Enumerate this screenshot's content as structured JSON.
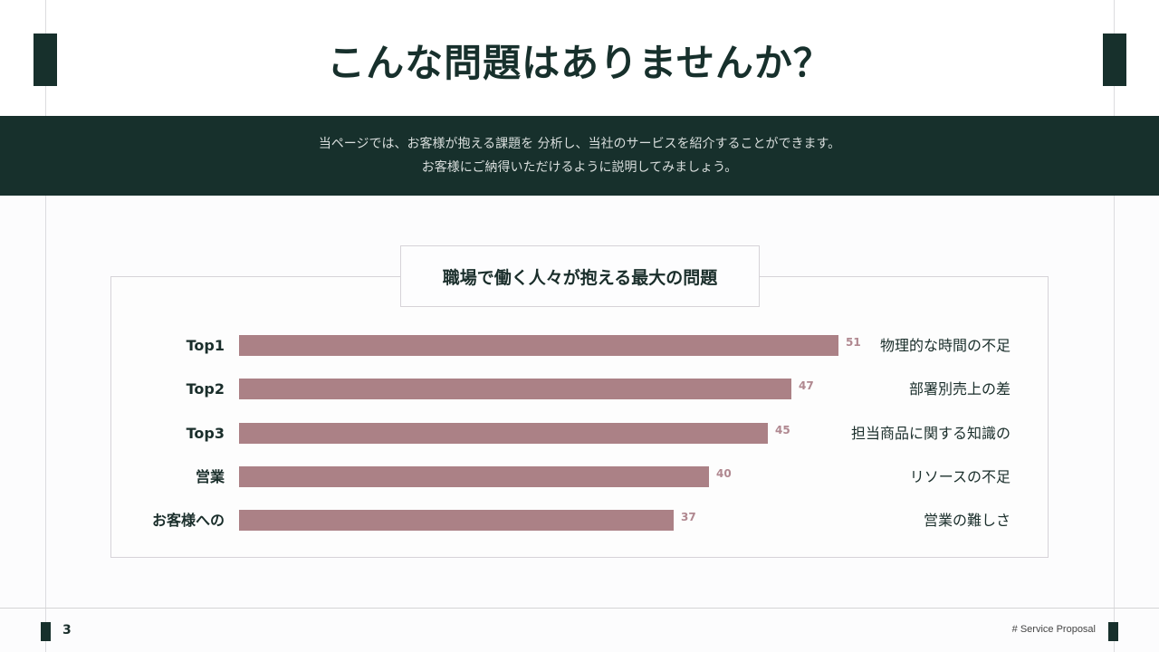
{
  "header": {
    "title": "こんな問題はありませんか？"
  },
  "intro": {
    "line1": "当ページでは、お客様が抱える課題を 分析し、当社のサービスを紹介することができます。",
    "line2": "お客様にご納得いただけるように説明してみましょう。"
  },
  "colors": {
    "primary_dark": "#17302c",
    "bar": "#ab8186",
    "value_label": "#b08890",
    "frame_border": "#d6d3d8"
  },
  "chart_data": {
    "type": "bar",
    "orientation": "horizontal",
    "title": "職場で働く人々が抱える最大の問題",
    "categories": [
      "Top1",
      "Top2",
      "Top3",
      "営業",
      "お客様への"
    ],
    "values": [
      51,
      47,
      45,
      40,
      37
    ],
    "descriptions": [
      "物理的な時間の不足",
      "部署別売上の差",
      "担当商品に関する知識の",
      "リソースの不足",
      "営業の難しさ"
    ],
    "xlabel": "",
    "ylabel": "",
    "grid": false,
    "legend": null,
    "data_labels": true
  },
  "chart": {
    "rows": [
      {
        "category": "Top1",
        "value": "51",
        "description": "物理的な時間の不足"
      },
      {
        "category": "Top2",
        "value": "47",
        "description": "部署別売上の差"
      },
      {
        "category": "Top3",
        "value": "45",
        "description": "担当商品に関する知識の"
      },
      {
        "category": "営業",
        "value": "40",
        "description": "リソースの不足"
      },
      {
        "category": "お客様への",
        "value": "37",
        "description": "営業の難しさ"
      }
    ]
  },
  "footer": {
    "page_number": "3",
    "tag": "# Service Proposal"
  }
}
